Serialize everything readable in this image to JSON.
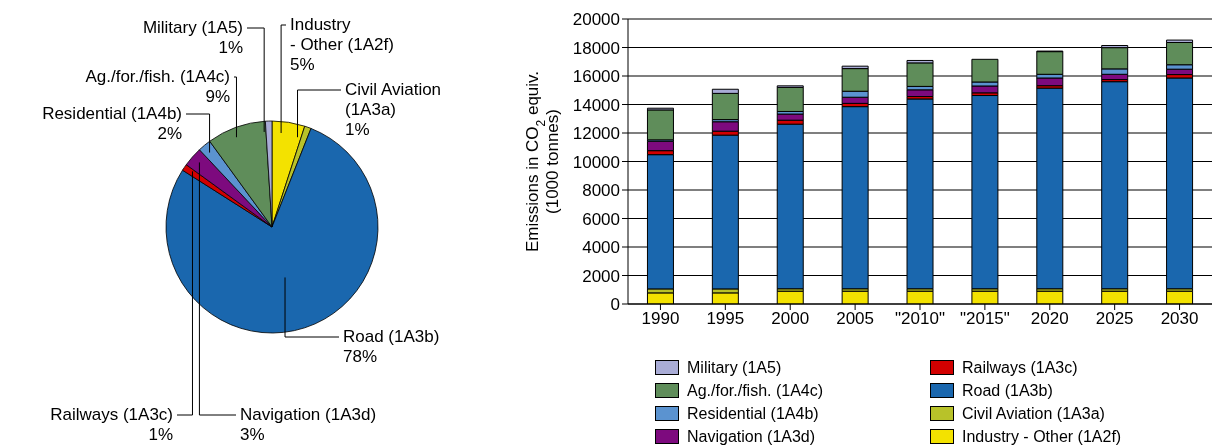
{
  "chart_data": [
    {
      "type": "pie",
      "categories": [
        "Industry\n- Other (1A2f)",
        "Civil Aviation\n(1A3a)",
        "Road (1A3b)",
        "Railways (1A3c)",
        "Navigation (1A3d)",
        "Residential (1A4b)",
        "Ag./for./fish. (1A4c)",
        "Military (1A5)"
      ],
      "values": [
        5,
        1,
        78,
        1,
        3,
        2,
        9,
        1
      ],
      "value_labels": [
        "5%",
        "1%",
        "78%",
        "1%",
        "3%",
        "2%",
        "9%",
        "1%"
      ],
      "colors": [
        "#f3e200",
        "#b8c229",
        "#1a67ae",
        "#d20000",
        "#7d0a7e",
        "#5b93d0",
        "#5f8d5a",
        "#a9acd6"
      ]
    },
    {
      "type": "bar",
      "stacked": true,
      "ylabel": "Emissions in CO$_{2}$ equiv.\n(1000 tonnes)",
      "categories": [
        "1990",
        "1995",
        "2000",
        "2005",
        "\"2010\"",
        "\"2015\"",
        "2020",
        "2025",
        "2030"
      ],
      "series": [
        {
          "name": "Industry - Other (1A2f)",
          "color": "#f3e200",
          "values": [
            780,
            780,
            900,
            900,
            900,
            900,
            900,
            900,
            900
          ]
        },
        {
          "name": "Civil Aviation (1A3a)",
          "color": "#b8c229",
          "values": [
            280,
            280,
            170,
            170,
            170,
            170,
            170,
            170,
            170
          ]
        },
        {
          "name": "Road (1A3b)",
          "color": "#1a67ae",
          "values": [
            9420,
            10790,
            11550,
            12780,
            13320,
            13560,
            14080,
            14530,
            14790
          ]
        },
        {
          "name": "Railways (1A3c)",
          "color": "#d20000",
          "values": [
            280,
            280,
            280,
            230,
            170,
            190,
            170,
            150,
            240
          ]
        },
        {
          "name": "Navigation (1A3d)",
          "color": "#7d0a7e",
          "values": [
            660,
            660,
            430,
            430,
            470,
            480,
            540,
            370,
            380
          ]
        },
        {
          "name": "Residential (1A4b)",
          "color": "#5b93d0",
          "values": [
            100,
            150,
            180,
            420,
            240,
            280,
            260,
            380,
            310
          ]
        },
        {
          "name": "Ag./for./fish. (1A4c)",
          "color": "#5f8d5a",
          "values": [
            2100,
            1840,
            1690,
            1590,
            1650,
            1590,
            1590,
            1490,
            1560
          ]
        },
        {
          "name": "Military (1A5)",
          "color": "#a9acd6",
          "values": [
            120,
            290,
            110,
            170,
            170,
            null,
            40,
            150,
            170
          ]
        }
      ],
      "ylim": [
        0,
        20000
      ],
      "yticks": [
        0,
        2000,
        4000,
        6000,
        8000,
        10000,
        12000,
        14000,
        16000,
        18000,
        20000
      ],
      "grid": "y",
      "legend": "bottom"
    }
  ]
}
